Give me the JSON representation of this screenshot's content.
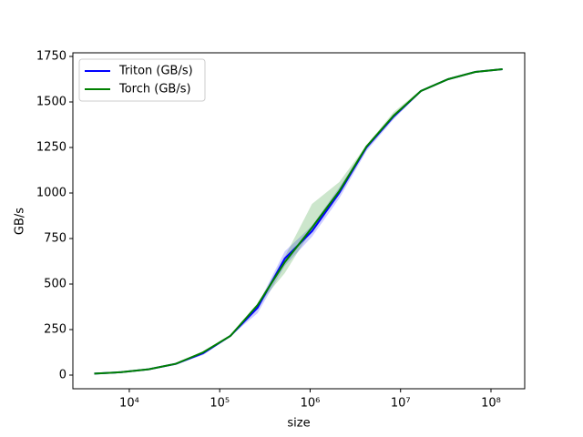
{
  "chart_data": {
    "type": "line",
    "x_label": "size",
    "y_label": "GB/s",
    "x": [
      4096,
      8192,
      16384,
      32768,
      65536,
      131072,
      262144,
      524288,
      1048576,
      2097152,
      4194304,
      8388608,
      16777216,
      33554432,
      67108864,
      134217728
    ],
    "series": [
      {
        "name": "Triton (GB/s)",
        "color": "#0000ff",
        "values": [
          8,
          16,
          32,
          62,
          120,
          215,
          370,
          640,
          790,
          1000,
          1250,
          1420,
          1560,
          1625,
          1665,
          1680
        ],
        "lower": [
          8,
          16,
          31,
          60,
          110,
          213,
          340,
          600,
          760,
          970,
          1230,
          1405,
          1555,
          1620,
          1662,
          1678
        ],
        "upper": [
          9,
          17,
          33,
          64,
          128,
          218,
          385,
          680,
          820,
          1030,
          1260,
          1430,
          1565,
          1630,
          1668,
          1683
        ]
      },
      {
        "name": "Torch (GB/s)",
        "color": "#008000",
        "values": [
          8,
          16,
          32,
          62,
          125,
          215,
          385,
          620,
          810,
          1010,
          1255,
          1425,
          1560,
          1625,
          1665,
          1680
        ],
        "lower": [
          8,
          16,
          31,
          61,
          120,
          213,
          380,
          560,
          800,
          1000,
          1250,
          1415,
          1555,
          1620,
          1662,
          1678
        ],
        "upper": [
          9,
          17,
          33,
          64,
          130,
          218,
          390,
          650,
          940,
          1060,
          1262,
          1445,
          1566,
          1630,
          1668,
          1683
        ]
      }
    ],
    "xlog": true,
    "xlim": [
      2377,
      236000000
    ],
    "xticks": [
      {
        "value": 10000,
        "label": "10⁴"
      },
      {
        "value": 100000,
        "label": "10⁵"
      },
      {
        "value": 1000000,
        "label": "10⁶"
      },
      {
        "value": 10000000,
        "label": "10⁷"
      },
      {
        "value": 100000000,
        "label": "10⁸"
      }
    ],
    "ylim": [
      -75,
      1770
    ],
    "yticks": [
      0,
      250,
      500,
      750,
      1000,
      1250,
      1500,
      1750
    ],
    "band_alpha": 0.2,
    "legend": "upper-left"
  }
}
